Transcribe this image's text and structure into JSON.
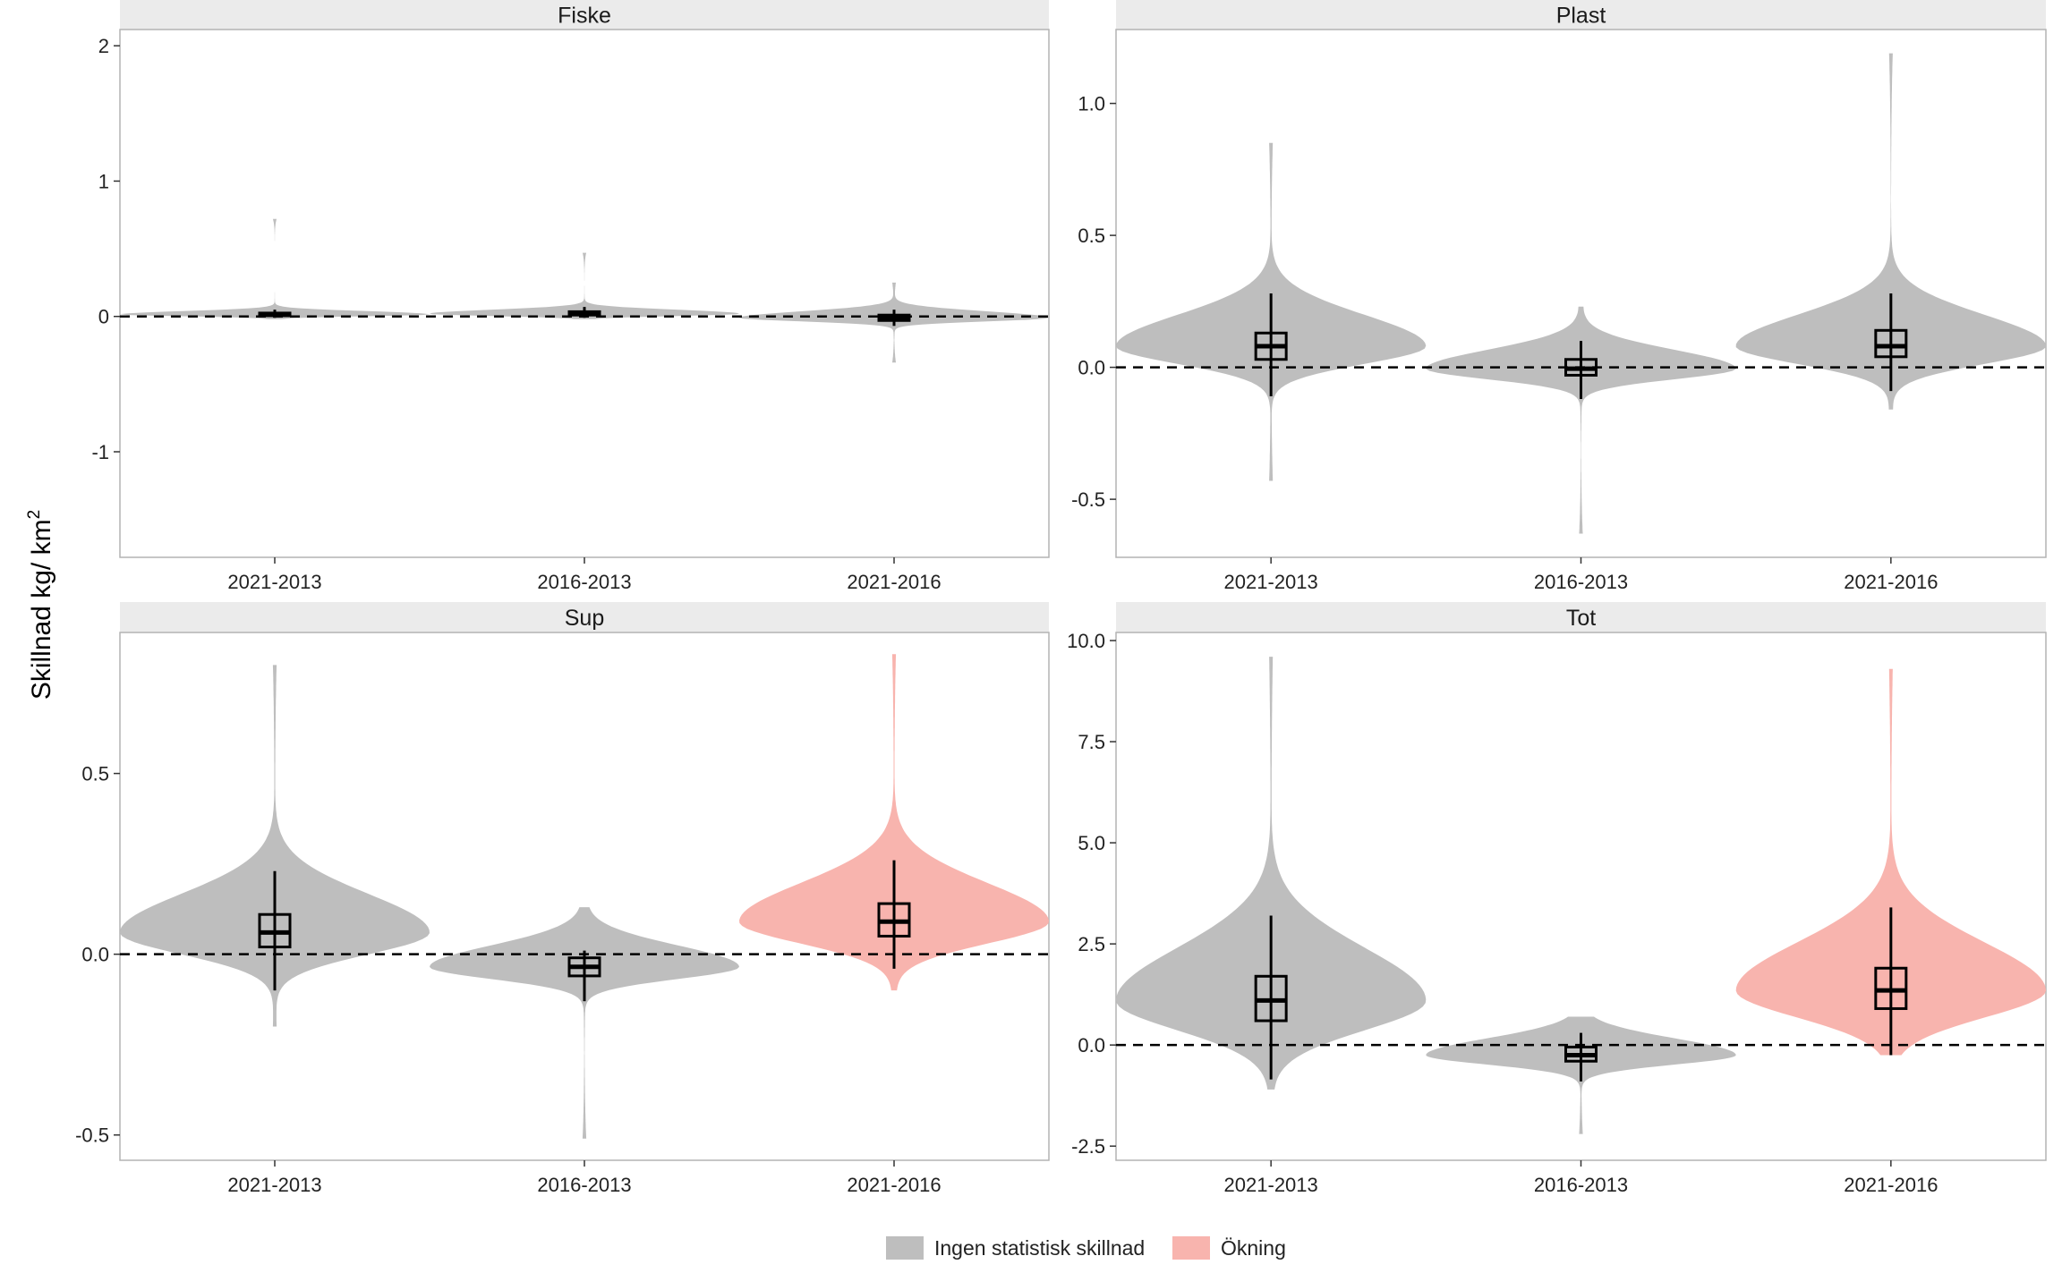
{
  "ylabel": "Skillnad kg/ km",
  "ylabel_sup": "2",
  "legend": [
    {
      "label": "Ingen statistisk skillnad",
      "color": "#BEBEBE"
    },
    {
      "label": "Ökning",
      "color": "#F8B4AE"
    }
  ],
  "chart_data": [
    {
      "type": "violin",
      "title": "Fiske",
      "categories": [
        "2021-2013",
        "2016-2013",
        "2021-2016"
      ],
      "ylim": [
        -1.78,
        2.12
      ],
      "yticks": [
        -1,
        0,
        1,
        2
      ],
      "ytick_labels": [
        "-1",
        "0",
        "1",
        "2"
      ],
      "reference_line": 0,
      "violins": [
        {
          "category": "2021-2013",
          "group": "Ingen statistisk skillnad",
          "min": -0.02,
          "max": 0.72,
          "q1": 0.005,
          "median": 0.015,
          "q3": 0.025,
          "whisker_low": -0.01,
          "whisker_high": 0.05
        },
        {
          "category": "2016-2013",
          "group": "Ingen statistisk skillnad",
          "min": -0.02,
          "max": 0.47,
          "q1": 0.01,
          "median": 0.02,
          "q3": 0.035,
          "whisker_low": -0.01,
          "whisker_high": 0.07
        },
        {
          "category": "2021-2016",
          "group": "Ingen statistisk skillnad",
          "min": -0.34,
          "max": 0.25,
          "q1": -0.03,
          "median": -0.01,
          "q3": 0.01,
          "whisker_low": -0.07,
          "whisker_high": 0.05
        }
      ]
    },
    {
      "type": "violin",
      "title": "Plast",
      "categories": [
        "2021-2013",
        "2016-2013",
        "2021-2016"
      ],
      "ylim": [
        -0.72,
        1.28
      ],
      "yticks": [
        -0.5,
        0.0,
        0.5,
        1.0
      ],
      "ytick_labels": [
        "-0.5",
        "0.0",
        "0.5",
        "1.0"
      ],
      "reference_line": 0,
      "violins": [
        {
          "category": "2021-2013",
          "group": "Ingen statistisk skillnad",
          "min": -0.43,
          "max": 0.85,
          "q1": 0.03,
          "median": 0.08,
          "q3": 0.13,
          "whisker_low": -0.11,
          "whisker_high": 0.28
        },
        {
          "category": "2016-2013",
          "group": "Ingen statistisk skillnad",
          "min": -0.63,
          "max": 0.23,
          "q1": -0.03,
          "median": -0.005,
          "q3": 0.03,
          "whisker_low": -0.12,
          "whisker_high": 0.1
        },
        {
          "category": "2021-2016",
          "group": "Ingen statistisk skillnad",
          "min": -0.16,
          "max": 1.19,
          "q1": 0.04,
          "median": 0.08,
          "q3": 0.14,
          "whisker_low": -0.09,
          "whisker_high": 0.28
        }
      ]
    },
    {
      "type": "violin",
      "title": "Sup",
      "categories": [
        "2021-2013",
        "2016-2013",
        "2021-2016"
      ],
      "ylim": [
        -0.57,
        0.89
      ],
      "yticks": [
        -0.5,
        0.0,
        0.5
      ],
      "ytick_labels": [
        "-0.5",
        "0.0",
        "0.5"
      ],
      "reference_line": 0,
      "violins": [
        {
          "category": "2021-2013",
          "group": "Ingen statistisk skillnad",
          "min": -0.2,
          "max": 0.8,
          "q1": 0.02,
          "median": 0.06,
          "q3": 0.11,
          "whisker_low": -0.1,
          "whisker_high": 0.23
        },
        {
          "category": "2016-2013",
          "group": "Ingen statistisk skillnad",
          "min": -0.51,
          "max": 0.13,
          "q1": -0.06,
          "median": -0.035,
          "q3": -0.01,
          "whisker_low": -0.13,
          "whisker_high": 0.01
        },
        {
          "category": "2021-2016",
          "group": "Ökning",
          "min": -0.1,
          "max": 0.83,
          "q1": 0.05,
          "median": 0.09,
          "q3": 0.14,
          "whisker_low": -0.04,
          "whisker_high": 0.26
        }
      ]
    },
    {
      "type": "violin",
      "title": "Tot",
      "categories": [
        "2021-2013",
        "2016-2013",
        "2021-2016"
      ],
      "ylim": [
        -2.85,
        10.2
      ],
      "yticks": [
        -2.5,
        0.0,
        2.5,
        5.0,
        7.5,
        10.0
      ],
      "ytick_labels": [
        "-2.5",
        "0.0",
        "2.5",
        "5.0",
        "7.5",
        "10.0"
      ],
      "reference_line": 0,
      "violins": [
        {
          "category": "2021-2013",
          "group": "Ingen statistisk skillnad",
          "min": -1.1,
          "max": 9.6,
          "q1": 0.6,
          "median": 1.1,
          "q3": 1.7,
          "whisker_low": -0.85,
          "whisker_high": 3.2
        },
        {
          "category": "2016-2013",
          "group": "Ingen statistisk skillnad",
          "min": -2.2,
          "max": 0.7,
          "q1": -0.4,
          "median": -0.25,
          "q3": -0.05,
          "whisker_low": -0.9,
          "whisker_high": 0.3
        },
        {
          "category": "2021-2016",
          "group": "Ökning",
          "min": -0.25,
          "max": 9.3,
          "q1": 0.9,
          "median": 1.35,
          "q3": 1.9,
          "whisker_low": -0.25,
          "whisker_high": 3.4
        }
      ]
    }
  ]
}
